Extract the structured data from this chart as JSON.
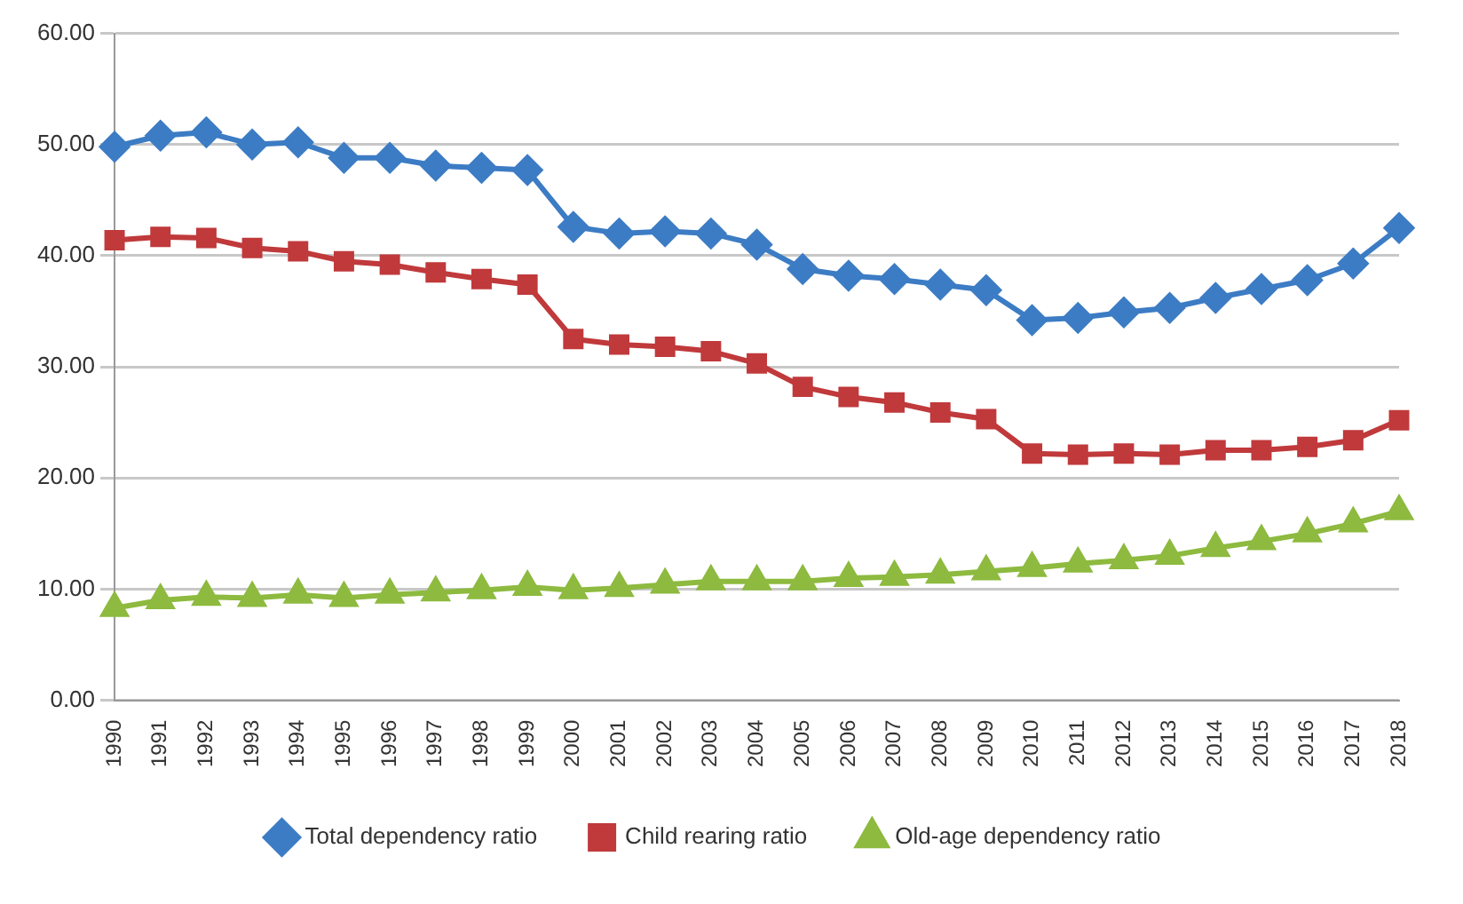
{
  "chart_data": {
    "type": "line",
    "categories": [
      "1990",
      "1991",
      "1992",
      "1993",
      "1994",
      "1995",
      "1996",
      "1997",
      "1998",
      "1999",
      "2000",
      "2001",
      "2002",
      "2003",
      "2004",
      "2005",
      "2006",
      "2007",
      "2008",
      "2009",
      "2010",
      "2011",
      "2012",
      "2013",
      "2014",
      "2015",
      "2016",
      "2017",
      "2018"
    ],
    "series": [
      {
        "name": "Total dependency ratio",
        "color": "#3c7cc4",
        "marker": "diamond",
        "values": [
          49.8,
          50.8,
          51.1,
          50.0,
          50.2,
          48.8,
          48.8,
          48.1,
          47.9,
          47.7,
          42.6,
          42.0,
          42.2,
          42.0,
          41.0,
          38.8,
          38.2,
          37.9,
          37.4,
          36.9,
          34.2,
          34.4,
          34.9,
          35.3,
          36.2,
          37.0,
          37.8,
          39.3,
          42.5
        ]
      },
      {
        "name": "Child rearing ratio",
        "color": "#c0393b",
        "marker": "square",
        "values": [
          41.4,
          41.7,
          41.6,
          40.7,
          40.4,
          39.5,
          39.2,
          38.5,
          37.9,
          37.4,
          32.5,
          32.0,
          31.8,
          31.4,
          30.3,
          28.2,
          27.3,
          26.8,
          25.9,
          25.3,
          22.2,
          22.1,
          22.2,
          22.1,
          22.5,
          22.5,
          22.8,
          23.4,
          25.2
        ]
      },
      {
        "name": "Old-age dependency ratio",
        "color": "#8dba3f",
        "marker": "triangle",
        "values": [
          8.3,
          9.0,
          9.3,
          9.2,
          9.5,
          9.2,
          9.5,
          9.7,
          9.9,
          10.2,
          9.9,
          10.1,
          10.4,
          10.7,
          10.7,
          10.7,
          11.0,
          11.1,
          11.3,
          11.6,
          11.9,
          12.3,
          12.6,
          13.0,
          13.7,
          14.3,
          15.0,
          15.9,
          17.0
        ]
      }
    ],
    "ylim": [
      0,
      60
    ],
    "yticks": [
      {
        "value": 0,
        "label": "0.00"
      },
      {
        "value": 10,
        "label": "10.00"
      },
      {
        "value": 20,
        "label": "20.00"
      },
      {
        "value": 30,
        "label": "30.00"
      },
      {
        "value": 40,
        "label": "40.00"
      },
      {
        "value": 50,
        "label": "50.00"
      },
      {
        "value": 60,
        "label": "60.00"
      }
    ],
    "grid": "y",
    "legend": "bottom"
  }
}
